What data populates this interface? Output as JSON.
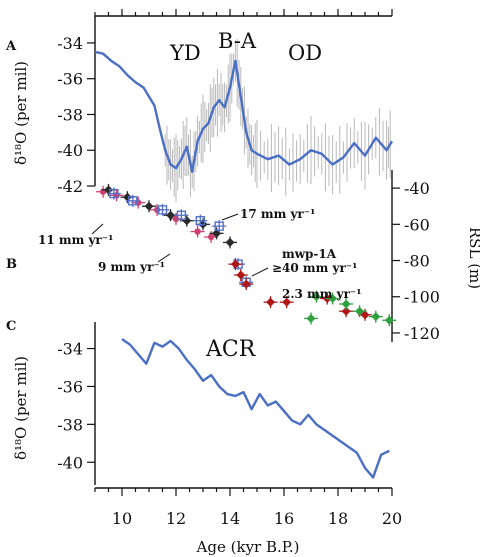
{
  "figure": {
    "x_axis": {
      "label": "Age (kyr B.P.)",
      "ticks": [
        "10",
        "12",
        "14",
        "16",
        "18",
        "20"
      ],
      "range": [
        9,
        20
      ]
    },
    "panels": [
      {
        "label": "A",
        "ylabel": "δ¹⁸O (per mil)",
        "yticks": [
          "-34",
          "-36",
          "-38",
          "-40",
          "-42"
        ]
      },
      {
        "label": "B",
        "ylabel": "RSL (m)",
        "yticks": [
          "-40",
          "-60",
          "-80",
          "-100",
          "-120"
        ]
      },
      {
        "label": "C",
        "ylabel": "δ¹⁸O (per mil)",
        "yticks": [
          "-34",
          "-36",
          "-38",
          "-40"
        ]
      }
    ],
    "annotations": {
      "a_events": [
        "YD",
        "B-A",
        "OD"
      ],
      "b_rates": [
        "11 mm yr⁻¹",
        "17 mm yr⁻¹",
        "9 mm yr⁻¹",
        "mwp-1A",
        "≥40 mm yr⁻¹",
        "2.3 mm yr⁻¹"
      ],
      "c_event": "ACR"
    }
  },
  "chart_data": [
    {
      "type": "line",
      "panel": "A",
      "ylabel": "δ¹⁸O (per mil)",
      "xlim": [
        9,
        20
      ],
      "ylim": [
        -42,
        -33.5
      ],
      "colors": {
        "main": "#4a6fc4",
        "raw": "#b8b8b8"
      },
      "x": [
        9.0,
        9.3,
        9.6,
        9.9,
        10.2,
        10.5,
        10.8,
        11.0,
        11.2,
        11.4,
        11.6,
        11.8,
        12.0,
        12.2,
        12.4,
        12.6,
        12.8,
        13.0,
        13.2,
        13.4,
        13.6,
        13.8,
        14.0,
        14.2,
        14.4,
        14.6,
        14.8,
        15.0,
        15.4,
        15.8,
        16.2,
        16.6,
        17.0,
        17.4,
        17.8,
        18.2,
        18.6,
        19.0,
        19.4,
        19.8,
        20.0
      ],
      "values": [
        -34.5,
        -34.6,
        -35.0,
        -35.3,
        -35.8,
        -36.2,
        -36.5,
        -37.0,
        -37.5,
        -38.8,
        -40.0,
        -40.8,
        -41.0,
        -40.5,
        -39.8,
        -41.2,
        -39.5,
        -38.8,
        -38.5,
        -37.6,
        -37.2,
        -37.6,
        -36.5,
        -35.0,
        -37.0,
        -39.0,
        -40.0,
        -40.2,
        -40.5,
        -40.3,
        -40.8,
        -40.5,
        -40.0,
        -40.2,
        -40.8,
        -40.4,
        -39.6,
        -40.3,
        -39.3,
        -40.0,
        -39.5
      ]
    },
    {
      "type": "scatter",
      "panel": "B",
      "ylabel": "RSL (m)",
      "xlim": [
        9,
        20
      ],
      "ylim": [
        -125,
        -30
      ],
      "series": [
        {
          "color": "#d04070",
          "marker": "cross",
          "x": [
            9.3,
            9.8,
            10.6,
            11.3,
            12.0,
            12.8,
            13.3
          ],
          "y": [
            -42,
            -44,
            -48,
            -52,
            -57,
            -64,
            -67
          ]
        },
        {
          "color": "#2a2a2a",
          "marker": "diamond",
          "x": [
            9.5,
            10.2,
            11.0,
            11.8,
            12.4,
            13.0,
            13.5,
            14.0
          ],
          "y": [
            -41,
            -45,
            -50,
            -55,
            -58,
            -60,
            -65,
            -70
          ]
        },
        {
          "color": "#5570c8",
          "marker": "square",
          "x": [
            9.7,
            10.4,
            11.5,
            12.2,
            12.9,
            13.6,
            14.3,
            14.6
          ],
          "y": [
            -43,
            -47,
            -52,
            -55,
            -58,
            -61,
            -82,
            -92
          ]
        },
        {
          "color": "#b01818",
          "marker": "diamond",
          "x": [
            14.2,
            14.4,
            14.6,
            15.5,
            16.1,
            17.6,
            18.3,
            19.0
          ],
          "y": [
            -82,
            -88,
            -93,
            -103,
            -103,
            -101,
            -108,
            -110
          ]
        },
        {
          "color": "#30a040",
          "marker": "diamond",
          "x": [
            17.0,
            17.2,
            17.8,
            18.3,
            18.8,
            19.4,
            19.9
          ],
          "y": [
            -112,
            -100,
            -101,
            -104,
            -108,
            -111,
            -113
          ]
        }
      ]
    },
    {
      "type": "line",
      "panel": "C",
      "ylabel": "δ¹⁸O (per mil)",
      "xlim": [
        9,
        20
      ],
      "ylim": [
        -41.2,
        -32.6
      ],
      "colors": {
        "main": "#4a6fc4"
      },
      "x": [
        10.0,
        10.3,
        10.6,
        10.9,
        11.2,
        11.5,
        11.8,
        12.1,
        12.4,
        12.7,
        13.0,
        13.3,
        13.6,
        13.9,
        14.2,
        14.5,
        14.8,
        15.1,
        15.4,
        15.7,
        16.0,
        16.3,
        16.6,
        16.9,
        17.2,
        17.5,
        17.8,
        18.1,
        18.4,
        18.7,
        19.0,
        19.3,
        19.6,
        19.9
      ],
      "values": [
        -33.5,
        -33.8,
        -34.3,
        -34.8,
        -33.7,
        -33.9,
        -33.6,
        -34.0,
        -34.6,
        -35.1,
        -35.7,
        -35.4,
        -36.0,
        -36.4,
        -36.5,
        -36.3,
        -37.2,
        -36.4,
        -37.0,
        -36.8,
        -37.3,
        -37.8,
        -38.0,
        -37.5,
        -38.0,
        -38.3,
        -38.6,
        -38.9,
        -39.2,
        -39.5,
        -40.3,
        -40.8,
        -39.6,
        -39.4
      ]
    }
  ]
}
